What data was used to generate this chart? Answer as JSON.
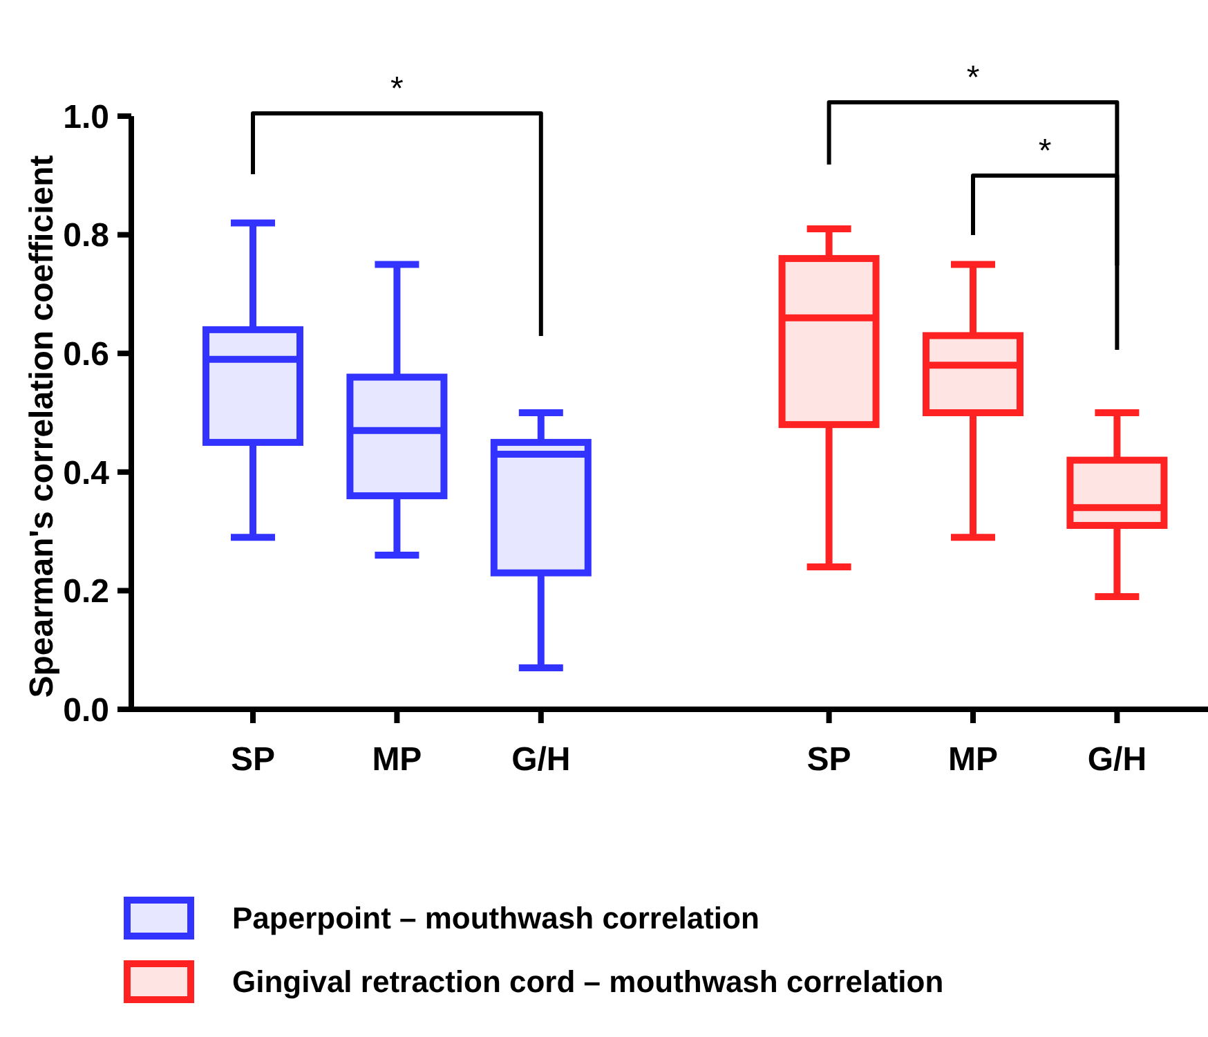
{
  "chart_data": {
    "type": "box",
    "ylabel": "Spearman's correlation coefficient",
    "categories": [
      "SP",
      "MP",
      "G/H",
      null,
      "SP",
      "MP",
      "G/H"
    ],
    "ylim": [
      0,
      1
    ],
    "yticks": [
      {
        "value": 0,
        "label": "0.0"
      },
      0.2,
      0.4,
      0.6,
      0.8,
      {
        "value": 1,
        "label": "1.0"
      }
    ],
    "legend": "bottom",
    "grid": false,
    "series": [
      {
        "name": "Paperpoint – mouthwash correlation",
        "color": "#3333ff",
        "boxes": [
          {
            "low": 0.29,
            "q1": 0.45,
            "median": 0.59,
            "q3": 0.64,
            "high": 0.82
          },
          {
            "low": 0.26,
            "q1": 0.36,
            "median": 0.47,
            "q3": 0.56,
            "high": 0.75
          },
          {
            "low": 0.07,
            "q1": 0.23,
            "median": 0.43,
            "q3": 0.45,
            "high": 0.5
          },
          null,
          null,
          null,
          null
        ]
      },
      {
        "name": "Gingival retraction cord – mouthwash correlation",
        "color": "#ff2222",
        "boxes": [
          null,
          null,
          null,
          null,
          {
            "low": 0.24,
            "q1": 0.48,
            "median": 0.66,
            "q3": 0.76,
            "high": 0.81
          },
          {
            "low": 0.29,
            "q1": 0.5,
            "median": 0.58,
            "q3": 0.63,
            "high": 0.75
          },
          {
            "low": 0.19,
            "q1": 0.31,
            "median": 0.34,
            "q3": 0.42,
            "high": 0.5
          }
        ]
      }
    ],
    "annotations": [
      "*",
      "*",
      "*"
    ]
  }
}
